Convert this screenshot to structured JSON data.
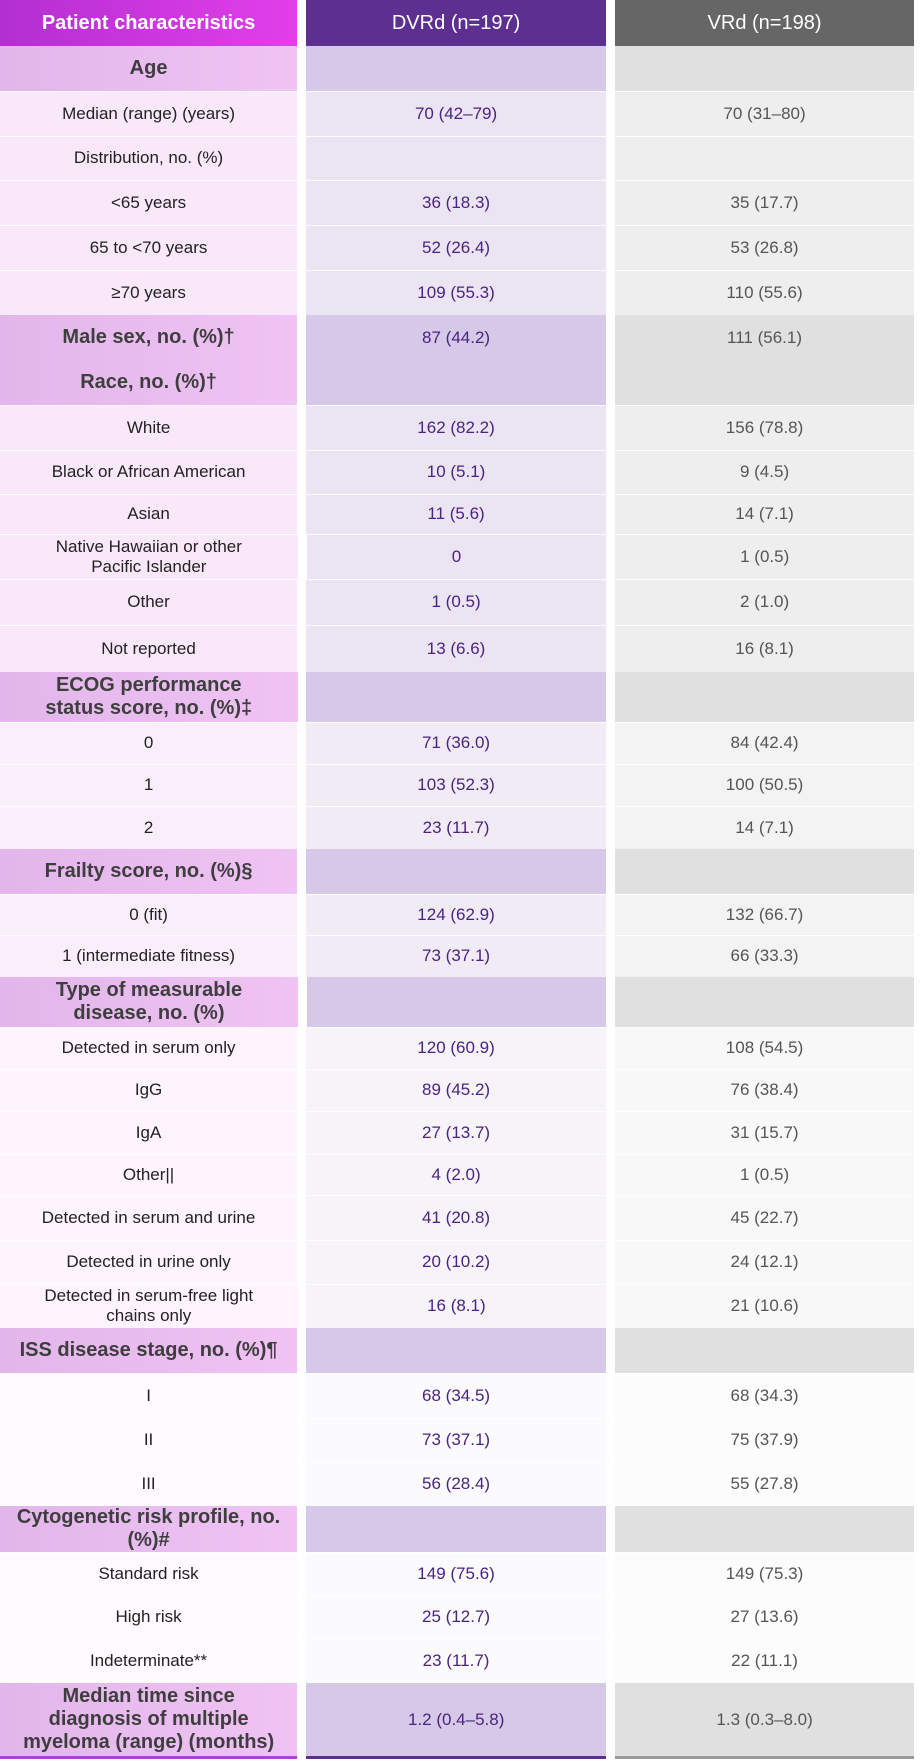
{
  "header": {
    "col1": "Patient characteristics",
    "col2": "DVRd (n=197)",
    "col3": "VRd (n=198)"
  },
  "rows": [
    {
      "label": "Age",
      "dvrd": "",
      "vrd": ""
    },
    {
      "label": "Median (range) (years)",
      "dvrd": "70 (42–79)",
      "vrd": "70 (31–80)"
    },
    {
      "label": "Distribution, no. (%)",
      "dvrd": "",
      "vrd": ""
    },
    {
      "label": "<65 years",
      "dvrd": "36 (18.3)",
      "vrd": "35 (17.7)"
    },
    {
      "label": "65 to <70 years",
      "dvrd": "52 (26.4)",
      "vrd": "53 (26.8)"
    },
    {
      "label": "≥70 years",
      "dvrd": "109 (55.3)",
      "vrd": "110 (55.6)"
    },
    {
      "label": "Male sex, no. (%)†",
      "dvrd": "87 (44.2)",
      "vrd": "111 (56.1)"
    },
    {
      "label": "Race, no. (%)†",
      "dvrd": "",
      "vrd": ""
    },
    {
      "label": "White",
      "dvrd": "162 (82.2)",
      "vrd": "156 (78.8)"
    },
    {
      "label": "Black or African American",
      "dvrd": "10 (5.1)",
      "vrd": "9 (4.5)"
    },
    {
      "label": "Asian",
      "dvrd": "11 (5.6)",
      "vrd": "14 (7.1)"
    },
    {
      "label": "Native Hawaiian or other Pacific Islander",
      "dvrd": "0",
      "vrd": "1 (0.5)"
    },
    {
      "label": "Other",
      "dvrd": "1 (0.5)",
      "vrd": "2 (1.0)"
    },
    {
      "label": "Not reported",
      "dvrd": "13 (6.6)",
      "vrd": "16 (8.1)"
    },
    {
      "label": "ECOG performance status score, no. (%)‡",
      "dvrd": "",
      "vrd": ""
    },
    {
      "label": "0",
      "dvrd": "71 (36.0)",
      "vrd": "84 (42.4)"
    },
    {
      "label": "1",
      "dvrd": "103 (52.3)",
      "vrd": "100 (50.5)"
    },
    {
      "label": "2",
      "dvrd": "23 (11.7)",
      "vrd": "14 (7.1)"
    },
    {
      "label": "Frailty score, no. (%)§",
      "dvrd": "",
      "vrd": ""
    },
    {
      "label": "0 (fit)",
      "dvrd": "124 (62.9)",
      "vrd": "132 (66.7)"
    },
    {
      "label": "1 (intermediate fitness)",
      "dvrd": "73 (37.1)",
      "vrd": "66 (33.3)"
    },
    {
      "label": "Type of measurable disease, no. (%)",
      "dvrd": "",
      "vrd": ""
    },
    {
      "label": "Detected in serum only",
      "dvrd": "120 (60.9)",
      "vrd": "108 (54.5)"
    },
    {
      "label": "IgG",
      "dvrd": "89 (45.2)",
      "vrd": "76 (38.4)"
    },
    {
      "label": "IgA",
      "dvrd": "27 (13.7)",
      "vrd": "31 (15.7)"
    },
    {
      "label": "Other||",
      "dvrd": "4 (2.0)",
      "vrd": "1 (0.5)"
    },
    {
      "label": "Detected in serum and urine",
      "dvrd": "41 (20.8)",
      "vrd": "45 (22.7)"
    },
    {
      "label": "Detected in urine only",
      "dvrd": "20 (10.2)",
      "vrd": "24 (12.1)"
    },
    {
      "label": "Detected in serum-free light chains only",
      "dvrd": "16 (8.1)",
      "vrd": "21 (10.6)"
    },
    {
      "label": "ISS disease stage, no. (%)¶",
      "dvrd": "",
      "vrd": ""
    },
    {
      "label": "I",
      "dvrd": "68 (34.5)",
      "vrd": "68 (34.3)"
    },
    {
      "label": "II",
      "dvrd": "73 (37.1)",
      "vrd": "75 (37.9)"
    },
    {
      "label": "III",
      "dvrd": "56 (28.4)",
      "vrd": "55 (27.8)"
    },
    {
      "label": "Cytogenetic risk profile, no. (%)#",
      "dvrd": "",
      "vrd": ""
    },
    {
      "label": "Standard risk",
      "dvrd": "149 (75.6)",
      "vrd": "149 (75.3)"
    },
    {
      "label": "High risk",
      "dvrd": "25 (12.7)",
      "vrd": "27 (13.6)"
    },
    {
      "label": "Indeterminate**",
      "dvrd": "23 (11.7)",
      "vrd": "22 (11.1)"
    },
    {
      "label": "Median time since diagnosis of multiple myeloma (range) (months)",
      "dvrd": "1.2 (0.4–5.8)",
      "vrd": "1.3 (0.3–8.0)"
    }
  ]
}
